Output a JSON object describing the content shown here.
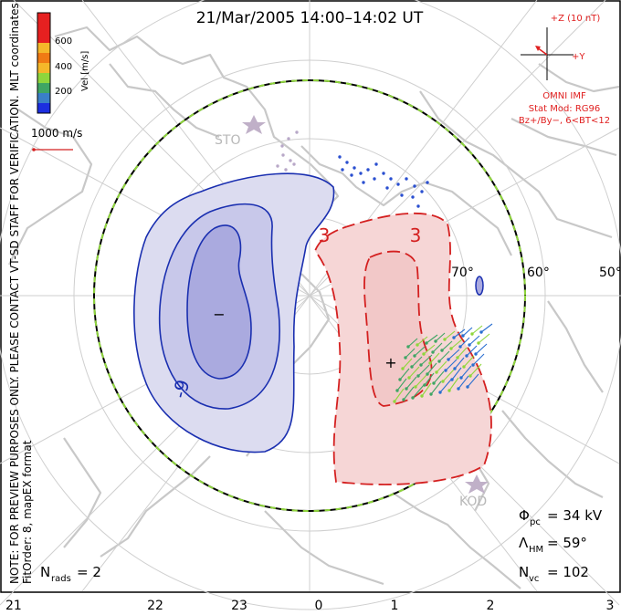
{
  "title": "21/Mar/2005 14:00–14:02 UT",
  "watermark": "NOTE: FOR PREVIEW PURPOSES ONLY. PLEASE CONTACT VT-SD STAFF FOR VERIFICATION.",
  "fit_info": "FitOrder: 8, mapEX format",
  "coord_label": "MLT coordinates",
  "colorbar": {
    "label": "Vel [m/s]",
    "ticks": [
      "600",
      "400",
      "200"
    ],
    "colors": [
      "#e62020",
      "#f07a14",
      "#f5b82a",
      "#8fd63c",
      "#3fa564",
      "#3a7fc8",
      "#1c2ee0"
    ]
  },
  "vector_scale": "1000 m/s",
  "imf": {
    "z_label": "+Z (10 nT)",
    "y_label": "+Y",
    "source": "OMNI IMF",
    "model": "Stat Mod: RG96",
    "condition": "Bz+/By−, 6<BT<12",
    "color": "#e02020"
  },
  "latitude_labels": [
    "70°",
    "60°",
    "50°"
  ],
  "stations": [
    "STO",
    "KOD"
  ],
  "contour_labels": {
    "negative": "-9",
    "positive_left": "3",
    "positive_right": "3"
  },
  "markers": {
    "min": "−",
    "max": "+"
  },
  "stats": {
    "phi_pc": {
      "symbol": "Φ",
      "sub": "pc",
      "value": "= 34 kV"
    },
    "lambda_hm": {
      "symbol": "Λ",
      "sub": "HM",
      "value": "= 59°"
    },
    "n_vc": {
      "symbol": "N",
      "sub": "vc",
      "value": "= 102"
    },
    "n_rads": {
      "symbol": "N",
      "sub": "rads",
      "value": "= 2"
    }
  },
  "mlt_axis": [
    "21",
    "22",
    "23",
    "0",
    "1",
    "2",
    "3"
  ],
  "colors": {
    "negative_line": "#1a2fb0",
    "negative_fill": "#dcdcf0",
    "positive_line": "#d42020",
    "positive_fill": "#f6d6d6",
    "land": "#c8c8c8",
    "grid": "#cfcfcf"
  }
}
